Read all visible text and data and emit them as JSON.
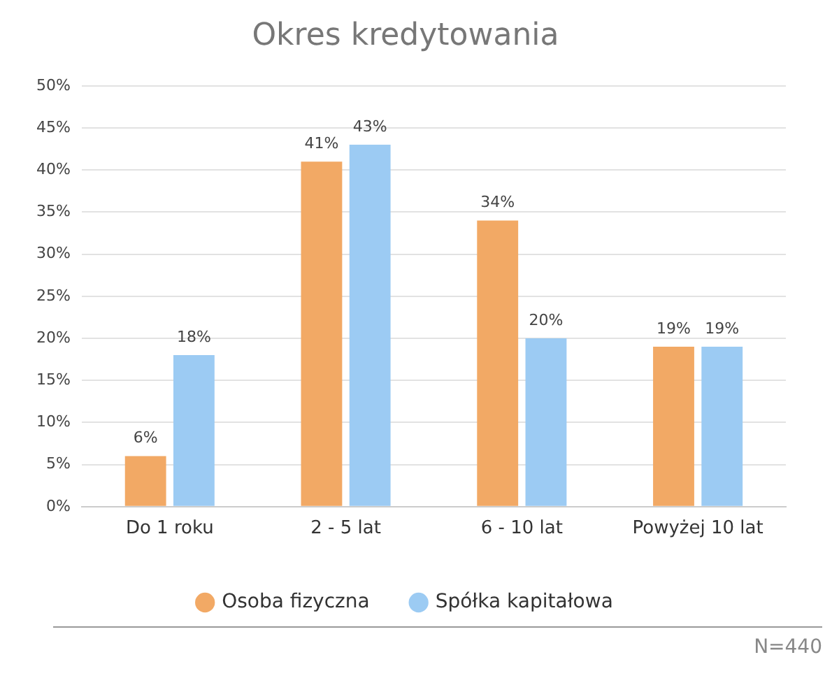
{
  "chart_data": {
    "type": "bar",
    "title": "Okres kredytowania",
    "categories": [
      "Do 1 roku",
      "2 - 5 lat",
      "6 - 10 lat",
      "Powyżej 10 lat"
    ],
    "series": [
      {
        "name": "Osoba fizyczna",
        "color": "#f2a965",
        "values": [
          6,
          41,
          34,
          19
        ],
        "value_labels": [
          "6%",
          "41%",
          "34%",
          "19%"
        ]
      },
      {
        "name": "Spółka kapitałowa",
        "color": "#9ccbf3",
        "values": [
          18,
          43,
          20,
          19
        ],
        "value_labels": [
          "18%",
          "43%",
          "20%",
          "19%"
        ]
      }
    ],
    "ylim": [
      0,
      50
    ],
    "yticks": [
      {
        "value": 0,
        "label": "0%"
      },
      {
        "value": 5,
        "label": "5%"
      },
      {
        "value": 10,
        "label": "10%"
      },
      {
        "value": 15,
        "label": "15%"
      },
      {
        "value": 20,
        "label": "20%"
      },
      {
        "value": 25,
        "label": "25%"
      },
      {
        "value": 30,
        "label": "30%"
      },
      {
        "value": 35,
        "label": "35%"
      },
      {
        "value": 40,
        "label": "40%"
      },
      {
        "value": 45,
        "label": "45%"
      },
      {
        "value": 50,
        "label": "50%"
      }
    ],
    "grid": "y",
    "legend": "bottom",
    "marker": "circle",
    "annotations": [
      "N=440"
    ]
  }
}
